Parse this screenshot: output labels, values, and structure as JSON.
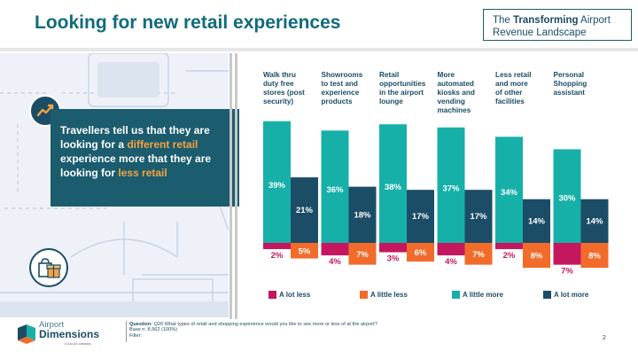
{
  "title": "Looking for new retail experiences",
  "subtitle": {
    "pre": "The ",
    "bold": "Transforming",
    "post": " Airport Revenue Landscape"
  },
  "callout": {
    "part1": "Travellers tell us that they are looking for a ",
    "highlight1": "different retail",
    "part2": " experience more that they are looking for ",
    "highlight2": "less retail"
  },
  "colors": {
    "a_lot_less": "#c4175f",
    "a_little_less": "#f26b2a",
    "a_little_more": "#17b0a9",
    "a_lot_more": "#1b4d66"
  },
  "chart_data": {
    "type": "bar",
    "categories": [
      "Walk thru duty free stores (post security)",
      "Showrooms to test and experience products",
      "Retail opportunities in the airport lounge",
      "More automated kiosks and vending machines",
      "Less retail and more of other facilities",
      "Personal Shopping assistant"
    ],
    "category_lines": [
      [
        "Walk thru",
        "duty free",
        "stores (post",
        "security)"
      ],
      [
        "Showrooms",
        "to test and",
        "experience",
        "products"
      ],
      [
        "Retail",
        "opportunities",
        "in the airport",
        "lounge"
      ],
      [
        "More",
        "automated",
        "kiosks and",
        "vending",
        "machines"
      ],
      [
        "Less retail",
        "and more",
        "of other",
        "facilities"
      ],
      [
        "Personal",
        "Shopping",
        "assistant"
      ]
    ],
    "series": [
      {
        "name": "A lot less",
        "values": [
          2,
          4,
          3,
          4,
          2,
          7
        ]
      },
      {
        "name": "A little less",
        "values": [
          5,
          7,
          6,
          7,
          8,
          8
        ]
      },
      {
        "name": "A little more",
        "values": [
          39,
          36,
          38,
          37,
          34,
          30
        ]
      },
      {
        "name": "A lot more",
        "values": [
          21,
          18,
          17,
          17,
          14,
          14
        ]
      }
    ],
    "legend_position": "bottom"
  },
  "legend": [
    "A lot less",
    "A little less",
    "A little more",
    "A lot more"
  ],
  "footer": {
    "question_label": "Question:",
    "question": " Q20 What types of retail and shopping experience would you like to see more or less of at the airport?",
    "base": "Base n: 8,562 (100%)",
    "filter": "Filter:"
  },
  "page_number": "2",
  "logo": {
    "line1": "Airport",
    "line2": "Dimensions",
    "tag": "A SALUS company"
  }
}
